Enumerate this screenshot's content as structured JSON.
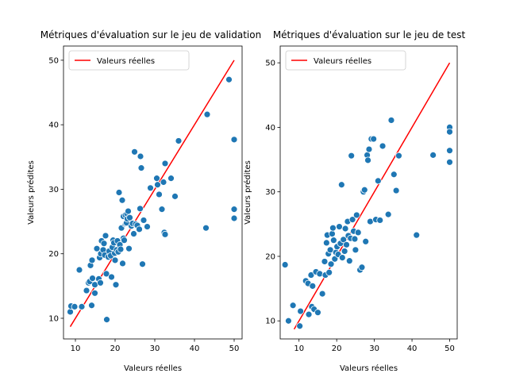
{
  "chart_data": [
    {
      "type": "scatter",
      "title": "Métriques d'évaluation sur le jeu de validation",
      "xlabel": "Valeurs réelles",
      "ylabel": "Valeurs prédites",
      "xlim": [
        7.0,
        52.0
      ],
      "ylim": [
        6.8,
        52.2
      ],
      "xticks": [
        10,
        20,
        30,
        40,
        50
      ],
      "yticks": [
        10,
        20,
        30,
        40,
        50
      ],
      "grid": false,
      "legend": {
        "position": "top-left",
        "entries": [
          "Valeurs réelles"
        ]
      },
      "line_color": "#ff0000",
      "marker_color": "#1f77b4",
      "reference_line": {
        "label": "Valeurs réelles",
        "x": [
          8.7,
          50.0
        ],
        "y": [
          8.7,
          50.0
        ]
      },
      "points": [
        [
          8.7,
          11.0
        ],
        [
          8.9,
          11.9
        ],
        [
          9.8,
          11.8
        ],
        [
          11.0,
          17.5
        ],
        [
          11.6,
          11.8
        ],
        [
          12.8,
          14.3
        ],
        [
          13.3,
          15.5
        ],
        [
          13.6,
          15.7
        ],
        [
          13.8,
          18.2
        ],
        [
          14.1,
          12.0
        ],
        [
          14.2,
          19.0
        ],
        [
          14.3,
          16.2
        ],
        [
          14.9,
          13.9
        ],
        [
          14.9,
          15.2
        ],
        [
          15.4,
          20.8
        ],
        [
          15.9,
          16.1
        ],
        [
          16.1,
          19.4
        ],
        [
          16.3,
          15.5
        ],
        [
          16.4,
          20.0
        ],
        [
          16.6,
          22.0
        ],
        [
          17.0,
          20.6
        ],
        [
          17.2,
          21.6
        ],
        [
          17.4,
          19.8
        ],
        [
          17.6,
          22.8
        ],
        [
          17.8,
          16.9
        ],
        [
          17.9,
          9.8
        ],
        [
          18.3,
          19.5
        ],
        [
          18.5,
          20.4
        ],
        [
          18.9,
          19.7
        ],
        [
          19.1,
          16.4
        ],
        [
          19.3,
          21.0
        ],
        [
          19.5,
          22.1
        ],
        [
          19.7,
          21.7
        ],
        [
          19.9,
          20.1
        ],
        [
          20.0,
          19.0
        ],
        [
          20.2,
          15.2
        ],
        [
          20.4,
          20.6
        ],
        [
          20.6,
          22.0
        ],
        [
          20.8,
          20.3
        ],
        [
          21.0,
          29.5
        ],
        [
          21.2,
          21.4
        ],
        [
          21.4,
          20.7
        ],
        [
          21.6,
          24.0
        ],
        [
          21.8,
          28.3
        ],
        [
          21.9,
          18.5
        ],
        [
          22.1,
          22.4
        ],
        [
          22.1,
          25.8
        ],
        [
          22.3,
          22.1
        ],
        [
          22.5,
          24.6
        ],
        [
          22.6,
          26.0
        ],
        [
          22.7,
          24.7
        ],
        [
          22.9,
          24.8
        ],
        [
          23.0,
          26.2
        ],
        [
          23.1,
          25.4
        ],
        [
          23.3,
          26.6
        ],
        [
          23.5,
          20.8
        ],
        [
          23.7,
          25.6
        ],
        [
          24.1,
          24.3
        ],
        [
          24.4,
          24.7
        ],
        [
          24.7,
          23.1
        ],
        [
          24.9,
          35.8
        ],
        [
          25.2,
          24.6
        ],
        [
          25.6,
          24.4
        ],
        [
          26.1,
          23.8
        ],
        [
          26.3,
          27.0
        ],
        [
          26.4,
          35.1
        ],
        [
          26.6,
          33.3
        ],
        [
          26.9,
          18.4
        ],
        [
          27.2,
          25.2
        ],
        [
          28.1,
          24.2
        ],
        [
          28.9,
          30.2
        ],
        [
          30.5,
          31.7
        ],
        [
          30.7,
          30.7
        ],
        [
          31.1,
          29.2
        ],
        [
          31.8,
          26.9
        ],
        [
          32.2,
          31.1
        ],
        [
          32.4,
          23.3
        ],
        [
          32.6,
          23.0
        ],
        [
          32.6,
          34.0
        ],
        [
          34.1,
          31.7
        ],
        [
          35.1,
          28.9
        ],
        [
          36.0,
          37.5
        ],
        [
          42.9,
          24.0
        ],
        [
          43.2,
          41.6
        ],
        [
          48.7,
          47.0
        ],
        [
          50.0,
          37.7
        ],
        [
          50.0,
          26.9
        ],
        [
          50.0,
          25.5
        ]
      ]
    },
    {
      "type": "scatter",
      "title": "Métriques d'évaluation sur le jeu de test",
      "xlabel": "Valeurs réelles",
      "ylabel": "Valeurs prédites",
      "xlim": [
        5.0,
        52.0
      ],
      "ylim": [
        7.2,
        52.6
      ],
      "xticks": [
        10,
        20,
        30,
        40,
        50
      ],
      "yticks": [
        10,
        20,
        30,
        40,
        50
      ],
      "grid": false,
      "legend": {
        "position": "top-left",
        "entries": [
          "Valeurs réelles"
        ]
      },
      "line_color": "#ff0000",
      "marker_color": "#1f77b4",
      "reference_line": {
        "label": "Valeurs réelles",
        "x": [
          8.7,
          50.0
        ],
        "y": [
          8.7,
          50.0
        ]
      },
      "points": [
        [
          6.3,
          18.7
        ],
        [
          7.2,
          10.0
        ],
        [
          8.4,
          12.4
        ],
        [
          10.2,
          9.2
        ],
        [
          10.4,
          11.5
        ],
        [
          11.8,
          16.2
        ],
        [
          12.4,
          15.8
        ],
        [
          12.6,
          11.0
        ],
        [
          13.2,
          17.1
        ],
        [
          13.4,
          12.2
        ],
        [
          13.6,
          15.4
        ],
        [
          14.0,
          11.8
        ],
        [
          14.5,
          17.6
        ],
        [
          15.0,
          11.3
        ],
        [
          15.5,
          17.3
        ],
        [
          16.2,
          14.2
        ],
        [
          16.8,
          19.2
        ],
        [
          17.0,
          17.1
        ],
        [
          17.3,
          22.1
        ],
        [
          17.5,
          23.3
        ],
        [
          17.8,
          20.4
        ],
        [
          18.0,
          17.5
        ],
        [
          18.3,
          21.0
        ],
        [
          18.5,
          18.8
        ],
        [
          18.8,
          23.5
        ],
        [
          19.0,
          24.4
        ],
        [
          19.2,
          22.5
        ],
        [
          19.5,
          19.6
        ],
        [
          19.8,
          20.6
        ],
        [
          20.1,
          21.5
        ],
        [
          20.4,
          20.3
        ],
        [
          20.7,
          24.6
        ],
        [
          21.0,
          22.0
        ],
        [
          21.3,
          31.1
        ],
        [
          21.5,
          19.8
        ],
        [
          21.8,
          22.6
        ],
        [
          22.1,
          20.8
        ],
        [
          22.3,
          24.3
        ],
        [
          22.6,
          21.8
        ],
        [
          22.9,
          25.4
        ],
        [
          23.1,
          23.2
        ],
        [
          23.4,
          19.3
        ],
        [
          23.7,
          22.8
        ],
        [
          23.9,
          35.6
        ],
        [
          24.2,
          25.7
        ],
        [
          24.5,
          23.9
        ],
        [
          24.8,
          22.7
        ],
        [
          25.0,
          21.0
        ],
        [
          25.3,
          26.4
        ],
        [
          25.7,
          23.7
        ],
        [
          26.2,
          17.9
        ],
        [
          26.7,
          18.3
        ],
        [
          27.1,
          30.0
        ],
        [
          27.4,
          30.3
        ],
        [
          27.7,
          22.3
        ],
        [
          28.1,
          35.7
        ],
        [
          28.3,
          34.9
        ],
        [
          28.6,
          36.6
        ],
        [
          28.9,
          25.4
        ],
        [
          29.2,
          38.2
        ],
        [
          29.8,
          38.2
        ],
        [
          30.4,
          25.7
        ],
        [
          31.0,
          31.7
        ],
        [
          31.5,
          25.6
        ],
        [
          32.2,
          37.1
        ],
        [
          33.7,
          26.5
        ],
        [
          34.5,
          41.1
        ],
        [
          35.2,
          32.7
        ],
        [
          35.8,
          30.2
        ],
        [
          36.5,
          35.6
        ],
        [
          41.2,
          23.3
        ],
        [
          45.6,
          35.7
        ],
        [
          50.0,
          40.0
        ],
        [
          50.0,
          39.3
        ],
        [
          50.0,
          36.4
        ],
        [
          50.0,
          34.6
        ]
      ]
    }
  ]
}
